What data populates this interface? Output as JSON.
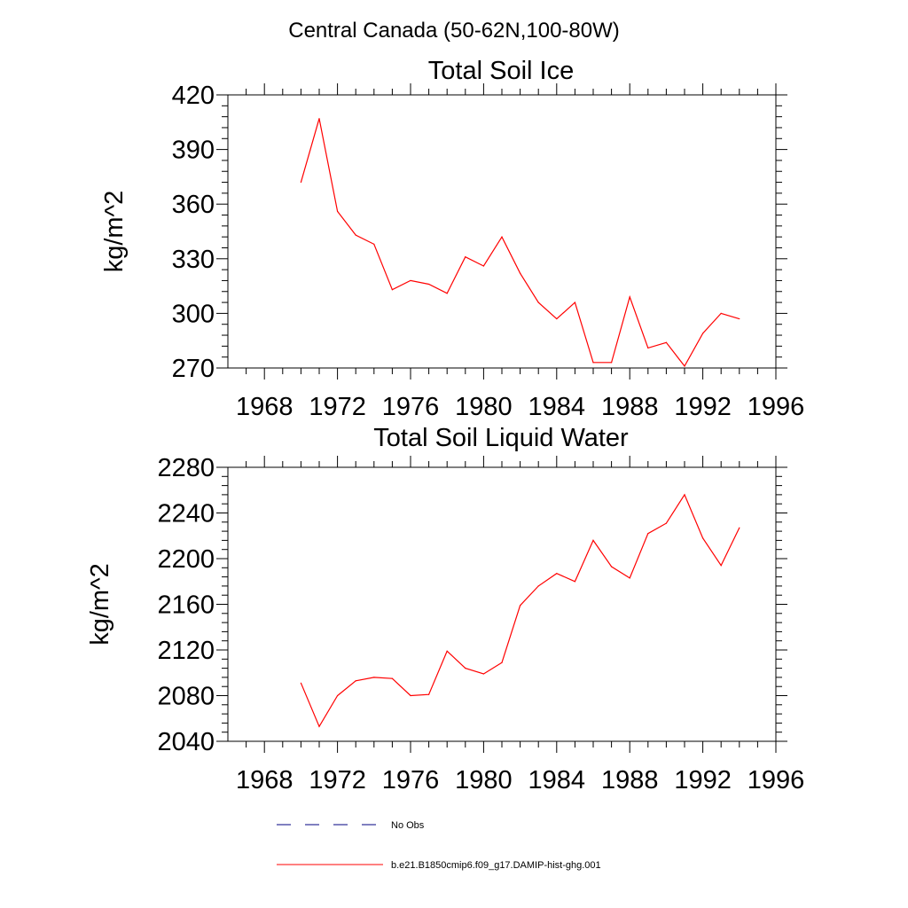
{
  "figure": {
    "title": "Central Canada (50-62N,100-80W)"
  },
  "chart_data": [
    {
      "type": "line",
      "title": "Total Soil Ice",
      "xlabel": "",
      "ylabel": "kg/m^2",
      "xlim": [
        1966,
        1996
      ],
      "ylim": [
        270,
        420
      ],
      "xticks": [
        1968,
        1972,
        1976,
        1980,
        1984,
        1988,
        1992,
        1996
      ],
      "yticks": [
        270,
        300,
        330,
        360,
        390,
        420
      ],
      "grid": false,
      "x": [
        1970,
        1971,
        1972,
        1973,
        1974,
        1975,
        1976,
        1977,
        1978,
        1979,
        1980,
        1981,
        1982,
        1983,
        1984,
        1985,
        1986,
        1987,
        1988,
        1989,
        1990,
        1991,
        1992,
        1993,
        1994
      ],
      "series": [
        {
          "name": "b.e21.B1850cmip6.f09_g17.DAMIP-hist-ghg.001",
          "color": "#ff0000",
          "values": [
            372,
            407,
            356,
            343,
            338,
            313,
            318,
            316,
            311,
            331,
            326,
            342,
            322,
            306,
            297,
            306,
            273,
            273,
            309,
            281,
            284,
            271,
            289,
            300,
            297
          ]
        }
      ]
    },
    {
      "type": "line",
      "title": "Total Soil Liquid Water",
      "xlabel": "",
      "ylabel": "kg/m^2",
      "xlim": [
        1966,
        1996
      ],
      "ylim": [
        2040,
        2280
      ],
      "xticks": [
        1968,
        1972,
        1976,
        1980,
        1984,
        1988,
        1992,
        1996
      ],
      "yticks": [
        2040,
        2080,
        2120,
        2160,
        2200,
        2240,
        2280
      ],
      "grid": false,
      "x": [
        1970,
        1971,
        1972,
        1973,
        1974,
        1975,
        1976,
        1977,
        1978,
        1979,
        1980,
        1981,
        1982,
        1983,
        1984,
        1985,
        1986,
        1987,
        1988,
        1989,
        1990,
        1991,
        1992,
        1993,
        1994
      ],
      "series": [
        {
          "name": "b.e21.B1850cmip6.f09_g17.DAMIP-hist-ghg.001",
          "color": "#ff0000",
          "values": [
            2091,
            2053,
            2080,
            2093,
            2096,
            2095,
            2080,
            2081,
            2119,
            2104,
            2099,
            2109,
            2159,
            2176,
            2187,
            2180,
            2216,
            2193,
            2183,
            2222,
            2231,
            2256,
            2218,
            2194,
            2227
          ]
        }
      ]
    }
  ],
  "legend": {
    "placement": "bottom",
    "entries": [
      {
        "label": "No Obs",
        "color": "#000080",
        "style": "dashed"
      },
      {
        "label": "b.e21.B1850cmip6.f09_g17.DAMIP-hist-ghg.001",
        "color": "#ff0000",
        "style": "solid"
      }
    ]
  }
}
